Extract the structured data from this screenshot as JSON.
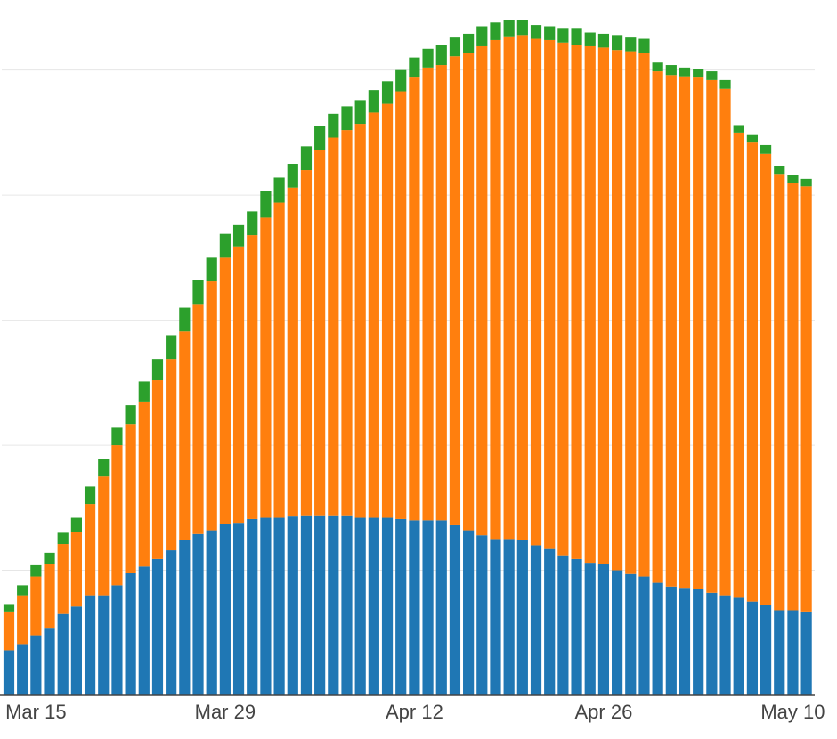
{
  "chart_data": {
    "type": "stacked_bar",
    "x": [
      "Mar 13",
      "Mar 14",
      "Mar 15",
      "Mar 16",
      "Mar 17",
      "Mar 18",
      "Mar 19",
      "Mar 20",
      "Mar 21",
      "Mar 22",
      "Mar 23",
      "Mar 24",
      "Mar 25",
      "Mar 26",
      "Mar 27",
      "Mar 28",
      "Mar 29",
      "Mar 30",
      "Mar 31",
      "Apr 1",
      "Apr 2",
      "Apr 3",
      "Apr 4",
      "Apr 5",
      "Apr 6",
      "Apr 7",
      "Apr 8",
      "Apr 9",
      "Apr 10",
      "Apr 11",
      "Apr 12",
      "Apr 13",
      "Apr 14",
      "Apr 15",
      "Apr 16",
      "Apr 17",
      "Apr 18",
      "Apr 19",
      "Apr 20",
      "Apr 21",
      "Apr 22",
      "Apr 23",
      "Apr 24",
      "Apr 25",
      "Apr 26",
      "Apr 27",
      "Apr 28",
      "Apr 29",
      "Apr 30",
      "May 1",
      "May 2",
      "May 3",
      "May 4",
      "May 5",
      "May 6",
      "May 7",
      "May 8",
      "May 9",
      "May 10",
      "May 11"
    ],
    "xticks": [
      "Mar 15",
      "Mar 29",
      "Apr 12",
      "Apr 26",
      "May 10"
    ],
    "series": [
      {
        "color": "#1f77b4",
        "values": [
          0.36,
          0.41,
          0.48,
          0.54,
          0.65,
          0.71,
          0.8,
          0.8,
          0.88,
          0.98,
          1.03,
          1.09,
          1.16,
          1.24,
          1.29,
          1.32,
          1.37,
          1.38,
          1.41,
          1.42,
          1.42,
          1.43,
          1.44,
          1.44,
          1.44,
          1.44,
          1.42,
          1.42,
          1.42,
          1.41,
          1.4,
          1.4,
          1.4,
          1.36,
          1.32,
          1.28,
          1.25,
          1.25,
          1.24,
          1.2,
          1.17,
          1.12,
          1.09,
          1.06,
          1.05,
          1.0,
          0.97,
          0.95,
          0.9,
          0.87,
          0.86,
          0.85,
          0.82,
          0.8,
          0.78,
          0.75,
          0.72,
          0.68,
          0.68,
          0.67
        ]
      },
      {
        "color": "#ff7f0e",
        "values": [
          0.31,
          0.39,
          0.47,
          0.51,
          0.56,
          0.6,
          0.73,
          0.95,
          1.12,
          1.19,
          1.32,
          1.43,
          1.53,
          1.67,
          1.84,
          1.99,
          2.13,
          2.21,
          2.27,
          2.4,
          2.52,
          2.63,
          2.76,
          2.92,
          3.02,
          3.08,
          3.15,
          3.24,
          3.31,
          3.42,
          3.54,
          3.62,
          3.64,
          3.75,
          3.82,
          3.91,
          3.99,
          4.02,
          4.04,
          4.05,
          4.07,
          4.1,
          4.11,
          4.13,
          4.13,
          4.16,
          4.18,
          4.19,
          4.09,
          4.09,
          4.09,
          4.09,
          4.1,
          4.05,
          3.72,
          3.67,
          3.61,
          3.49,
          3.42,
          3.4
        ]
      },
      {
        "color": "#2ca02c",
        "values": [
          0.06,
          0.08,
          0.09,
          0.09,
          0.09,
          0.11,
          0.14,
          0.14,
          0.14,
          0.15,
          0.16,
          0.17,
          0.19,
          0.19,
          0.19,
          0.19,
          0.19,
          0.17,
          0.19,
          0.21,
          0.2,
          0.19,
          0.19,
          0.19,
          0.19,
          0.19,
          0.19,
          0.18,
          0.18,
          0.17,
          0.16,
          0.15,
          0.16,
          0.15,
          0.15,
          0.16,
          0.14,
          0.13,
          0.12,
          0.11,
          0.11,
          0.11,
          0.13,
          0.11,
          0.11,
          0.12,
          0.11,
          0.11,
          0.07,
          0.08,
          0.07,
          0.07,
          0.07,
          0.07,
          0.06,
          0.06,
          0.07,
          0.06,
          0.06,
          0.06
        ]
      }
    ],
    "ylim": [
      0,
      5.56
    ],
    "yticks": [
      0,
      1,
      2,
      3,
      4,
      5
    ],
    "grid": true
  }
}
